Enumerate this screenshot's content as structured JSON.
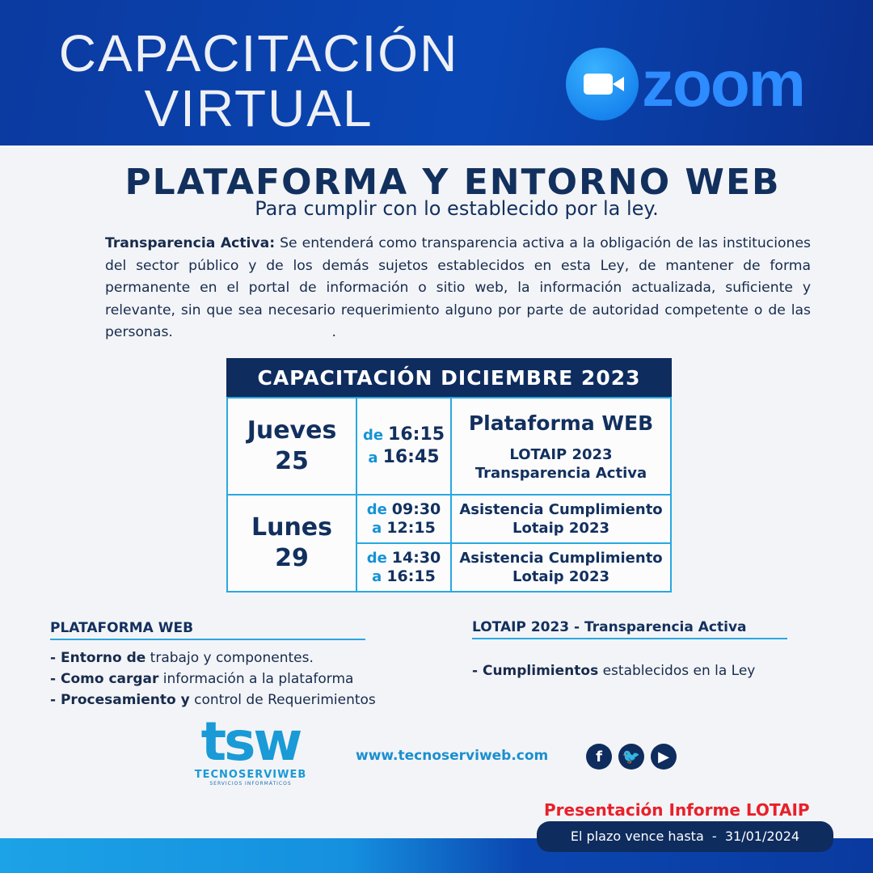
{
  "header": {
    "title_line1": "CAPACITACIÓN",
    "title_line2": "VIRTUAL",
    "zoom_logo": "zoom"
  },
  "main": {
    "title": "PLATAFORMA Y ENTORNO WEB",
    "subtitle": "Para cumplir con lo establecido por la ley.",
    "paragraph_term": "Transparencia Activa:",
    "paragraph_text": " Se entenderá como transparencia activa a la obligación de las instituciones del sector público y de los demás sujetos establecidos en esta Ley, de mantener de forma permanente en el portal de información o sitio web, la información actualizada, suficiente y relevante, sin que sea necesario requerimiento alguno por parte de autoridad competente o de las personas.                                    ."
  },
  "schedule": {
    "title": "CAPACITACIÓN DICIEMBRE 2023",
    "days": [
      {
        "name": "Jueves",
        "num": "25"
      },
      {
        "name": "Lunes",
        "num": "29"
      }
    ],
    "sessions": [
      {
        "from_label": "de",
        "from": "16:15",
        "to_label": "a",
        "to": "16:45",
        "title": "Plataforma WEB",
        "line1": "LOTAIP 2023",
        "line2": "Transparencia Activa"
      },
      {
        "from_label": "de",
        "from": "09:30",
        "to_label": "a",
        "to": "12:15",
        "line1": "Asistencia Cumplimiento",
        "line2": "Lotaip 2023"
      },
      {
        "from_label": "de",
        "from": "14:30",
        "to_label": "a",
        "to": "16:15",
        "line1": "Asistencia Cumplimiento",
        "line2": "Lotaip 2023"
      }
    ]
  },
  "topics_left": {
    "title": "PLATAFORMA WEB",
    "items": [
      {
        "bold": "- Entorno de",
        "rest": " trabajo y componentes."
      },
      {
        "bold": "- Como cargar",
        "rest": " información a la plataforma"
      },
      {
        "bold": "- Procesamiento y",
        "rest": " control de Requerimientos"
      }
    ]
  },
  "topics_right": {
    "title": "LOTAIP 2023 - Transparencia Activa",
    "items": [
      {
        "bold": "- Cumplimientos",
        "rest": " establecidos en la Ley"
      }
    ]
  },
  "footer": {
    "logo": "tsw",
    "brand": "TECNOSERVIWEB",
    "tagline": "SERVICIOS INFORMÁTICOS",
    "website": "www.tecnoserviweb.com",
    "social": [
      "facebook-icon",
      "twitter-icon",
      "youtube-icon"
    ],
    "notice_title": "Presentación Informe LOTAIP",
    "deadline": "El plazo vence hasta  -  31/01/2024"
  },
  "colors": {
    "navy": "#0e2c5e",
    "accent": "#29a8e0",
    "red": "#e8202a",
    "banner": "#0a47b5"
  }
}
